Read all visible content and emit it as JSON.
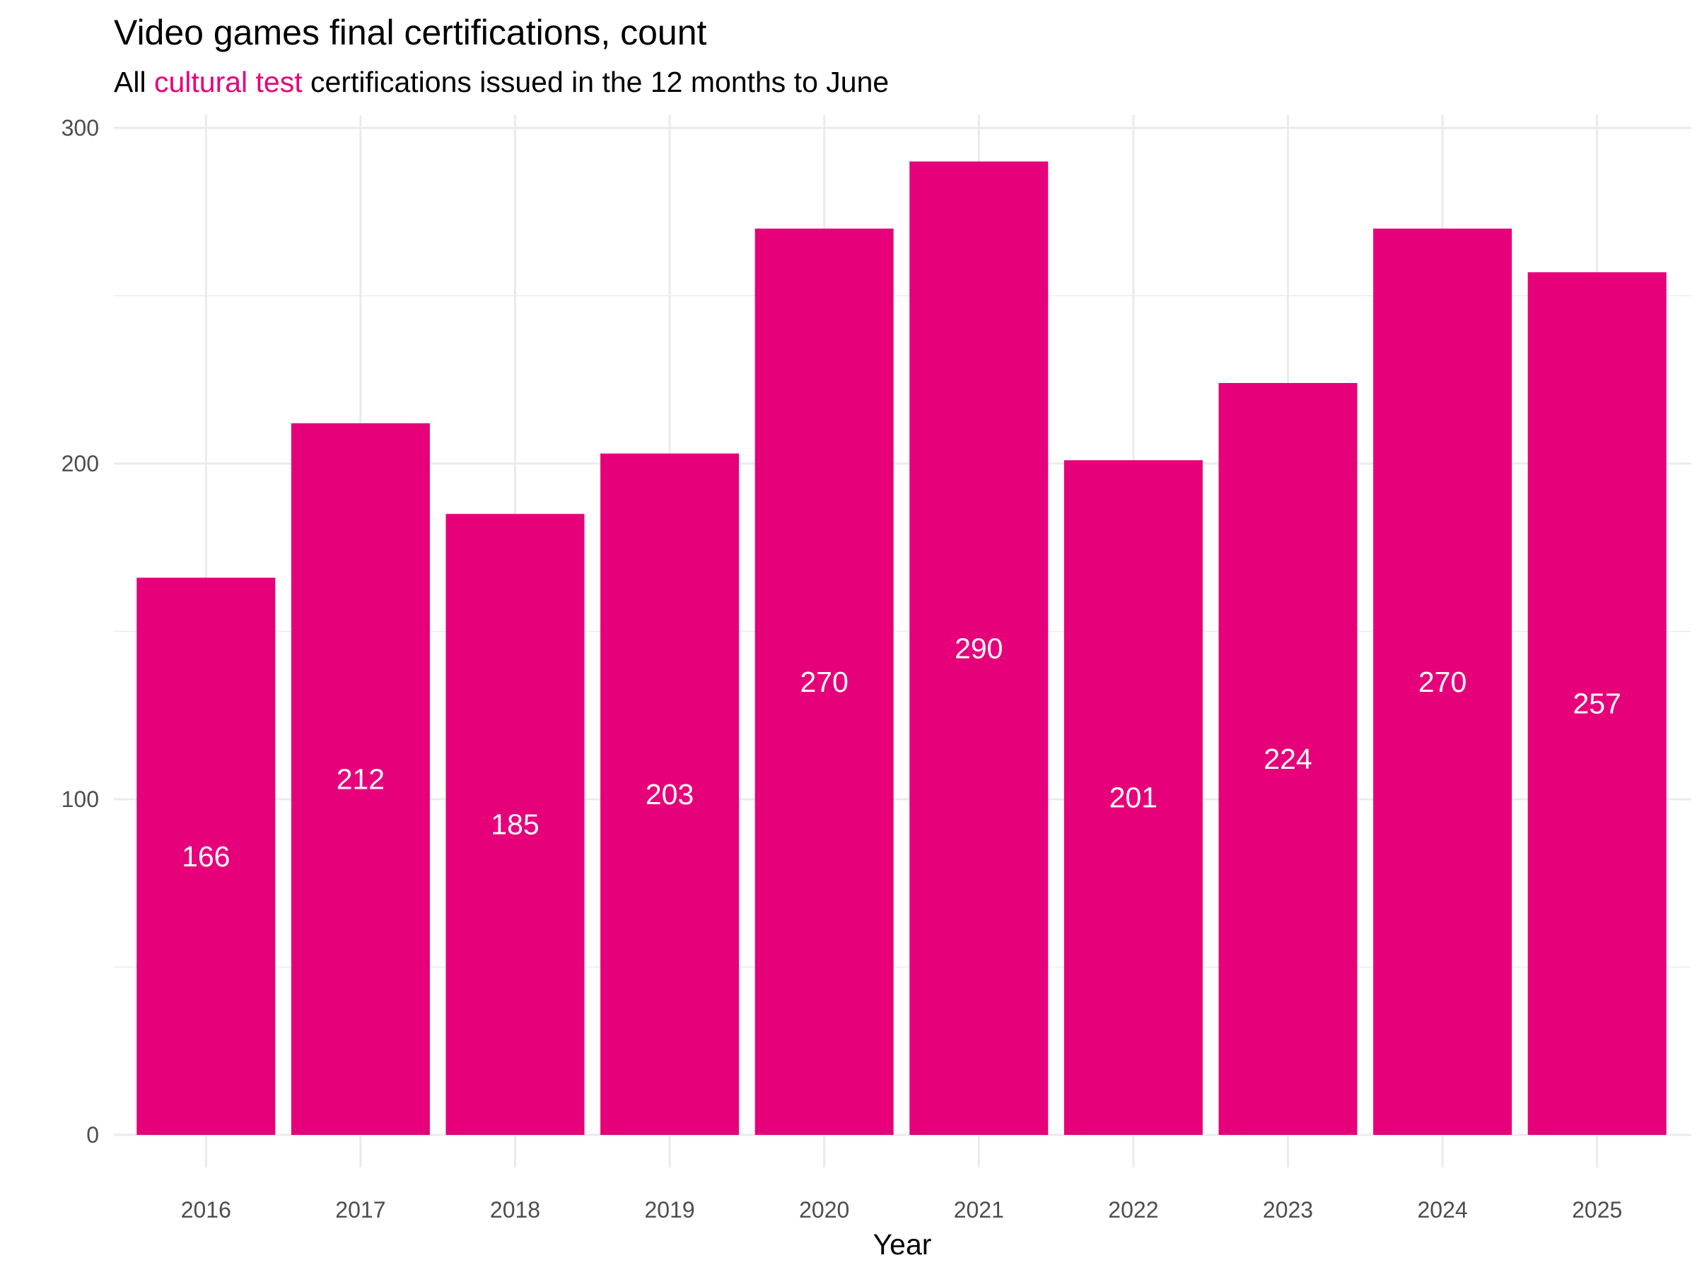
{
  "chart_data": {
    "type": "bar",
    "title": "Video games final certifications, count",
    "subtitle": {
      "prefix": "All ",
      "highlight": "cultural test",
      "suffix": " certifications issued in the 12 months to June"
    },
    "xlabel": "Year",
    "ylabel": "",
    "categories": [
      "2016",
      "2017",
      "2018",
      "2019",
      "2020",
      "2021",
      "2022",
      "2023",
      "2024",
      "2025"
    ],
    "values": [
      166,
      212,
      185,
      203,
      270,
      290,
      201,
      224,
      270,
      257
    ],
    "data_labels": [
      "166",
      "212",
      "185",
      "203",
      "270",
      "290",
      "201",
      "224",
      "270",
      "257"
    ],
    "yticks": [
      0,
      100,
      200,
      300
    ],
    "ytick_labels": [
      "0",
      "100",
      "200",
      "300"
    ],
    "ylim": [
      0,
      300
    ],
    "grid": true,
    "legend": "none",
    "bar_color": "#E6007A",
    "label_color": "#ffffff",
    "grid_color": "#ebebeb",
    "highlight_color": "#E6007A"
  }
}
